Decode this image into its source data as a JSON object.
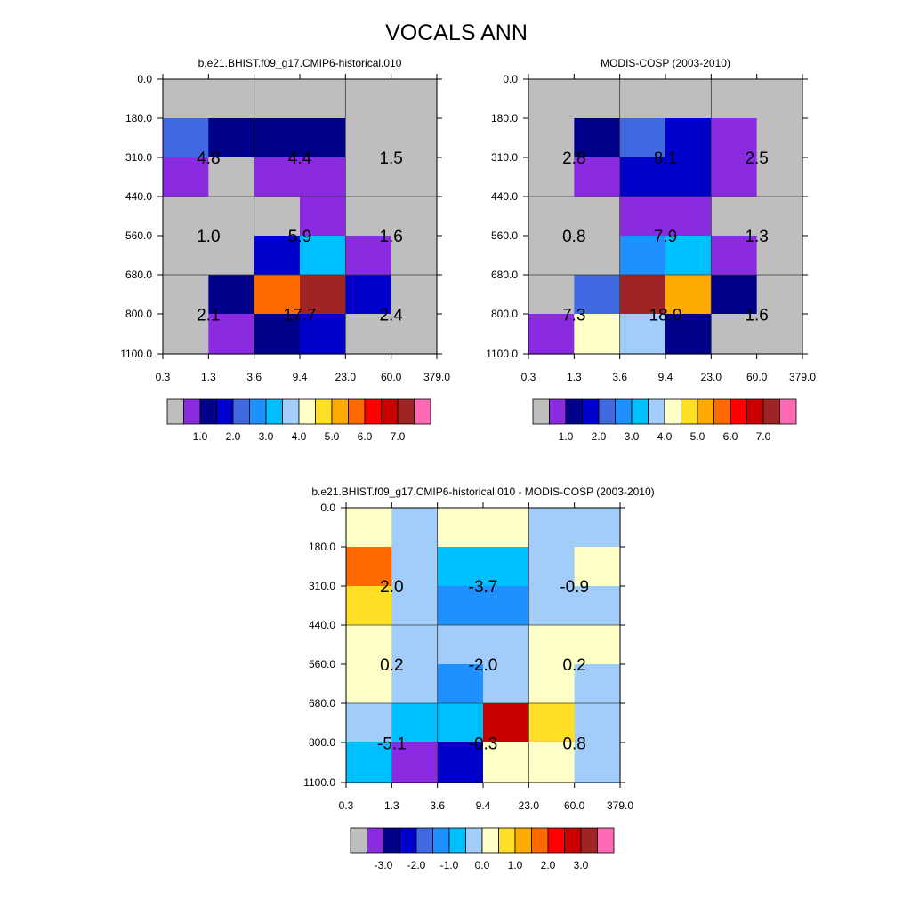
{
  "figure_title": "VOCALS ANN",
  "chart_data": [
    {
      "type": "heatmap",
      "title": "b.e21.BHIST.f09_g17.CMIP6-historical.010",
      "x_ticks": [
        "0.3",
        "1.3",
        "3.6",
        "9.4",
        "23.0",
        "60.0",
        "379.0"
      ],
      "y_ticks": [
        "0.0",
        "180.0",
        "310.0",
        "440.0",
        "560.0",
        "680.0",
        "800.0",
        "1100.0"
      ],
      "cell_levels": [
        [
          0,
          0,
          0,
          0,
          0,
          0
        ],
        [
          4,
          2,
          2,
          2,
          0,
          0
        ],
        [
          1,
          0,
          1,
          1,
          0,
          0
        ],
        [
          0,
          0,
          0,
          1,
          0,
          0
        ],
        [
          0,
          0,
          3,
          6,
          1,
          0
        ],
        [
          0,
          2,
          11,
          14,
          3,
          0
        ],
        [
          0,
          1,
          2,
          3,
          0,
          0
        ]
      ],
      "box_values": [
        [
          "4.8",
          "4.4",
          "1.5"
        ],
        [
          "1.0",
          "5.9",
          "1.6"
        ],
        [
          "2.1",
          "17.7",
          "2.4"
        ]
      ],
      "colorbar": {
        "colors": [
          "#BEBEBE",
          "#8A2BE2",
          "#00008B",
          "#0000CD",
          "#4169E1",
          "#1E90FF",
          "#00BFFF",
          "#A2CDFA",
          "#FFFFC8",
          "#FFDF26",
          "#FFAA00",
          "#FF6A00",
          "#FF0000",
          "#C80000",
          "#A02424",
          "#FF69B4"
        ],
        "labels": [
          "1.0",
          "2.0",
          "3.0",
          "4.0",
          "5.0",
          "6.0",
          "7.0"
        ]
      }
    },
    {
      "type": "heatmap",
      "title": "MODIS-COSP (2003-2010)",
      "x_ticks": [
        "0.3",
        "1.3",
        "3.6",
        "9.4",
        "23.0",
        "60.0",
        "379.0"
      ],
      "y_ticks": [
        "0.0",
        "180.0",
        "310.0",
        "440.0",
        "560.0",
        "680.0",
        "800.0",
        "1100.0"
      ],
      "cell_levels": [
        [
          0,
          0,
          0,
          0,
          0,
          0
        ],
        [
          0,
          2,
          4,
          3,
          1,
          0
        ],
        [
          0,
          1,
          3,
          3,
          1,
          0
        ],
        [
          0,
          0,
          1,
          1,
          0,
          0
        ],
        [
          0,
          0,
          5,
          6,
          1,
          0
        ],
        [
          0,
          4,
          14,
          10,
          2,
          0
        ],
        [
          1,
          8,
          7,
          2,
          0,
          0
        ]
      ],
      "box_values": [
        [
          "2.8",
          "8.1",
          "2.5"
        ],
        [
          "0.8",
          "7.9",
          "1.3"
        ],
        [
          "7.3",
          "18.0",
          "1.6"
        ]
      ],
      "colorbar": {
        "colors": [
          "#BEBEBE",
          "#8A2BE2",
          "#00008B",
          "#0000CD",
          "#4169E1",
          "#1E90FF",
          "#00BFFF",
          "#A2CDFA",
          "#FFFFC8",
          "#FFDF26",
          "#FFAA00",
          "#FF6A00",
          "#FF0000",
          "#C80000",
          "#A02424",
          "#FF69B4"
        ],
        "labels": [
          "1.0",
          "2.0",
          "3.0",
          "4.0",
          "5.0",
          "6.0",
          "7.0"
        ]
      }
    },
    {
      "type": "heatmap",
      "title": "b.e21.BHIST.f09_g17.CMIP6-historical.010 - MODIS-COSP (2003-2010)",
      "x_ticks": [
        "0.3",
        "1.3",
        "3.6",
        "9.4",
        "23.0",
        "60.0",
        "379.0"
      ],
      "y_ticks": [
        "0.0",
        "180.0",
        "310.0",
        "440.0",
        "560.0",
        "680.0",
        "800.0",
        "1100.0"
      ],
      "cell_levels": [
        [
          8,
          7,
          8,
          8,
          7,
          7
        ],
        [
          11,
          7,
          6,
          6,
          7,
          8
        ],
        [
          9,
          7,
          5,
          5,
          7,
          7
        ],
        [
          8,
          7,
          7,
          7,
          8,
          8
        ],
        [
          8,
          7,
          5,
          7,
          8,
          7
        ],
        [
          7,
          6,
          6,
          13,
          9,
          7
        ],
        [
          6,
          1,
          3,
          8,
          8,
          7
        ]
      ],
      "box_values": [
        [
          "2.0",
          "-3.7",
          "-0.9"
        ],
        [
          "0.2",
          "-2.0",
          "0.2"
        ],
        [
          "-5.1",
          "-0.3",
          "0.8"
        ]
      ],
      "colorbar": {
        "colors": [
          "#BEBEBE",
          "#8A2BE2",
          "#00008B",
          "#0000CD",
          "#4169E1",
          "#1E90FF",
          "#00BFFF",
          "#A2CDFA",
          "#FFFFC8",
          "#FFDF26",
          "#FFAA00",
          "#FF6A00",
          "#FF0000",
          "#C80000",
          "#A02424",
          "#FF69B4"
        ],
        "labels": [
          "-3.0",
          "-2.0",
          "-1.0",
          "0.0",
          "1.0",
          "2.0",
          "3.0"
        ]
      }
    }
  ]
}
